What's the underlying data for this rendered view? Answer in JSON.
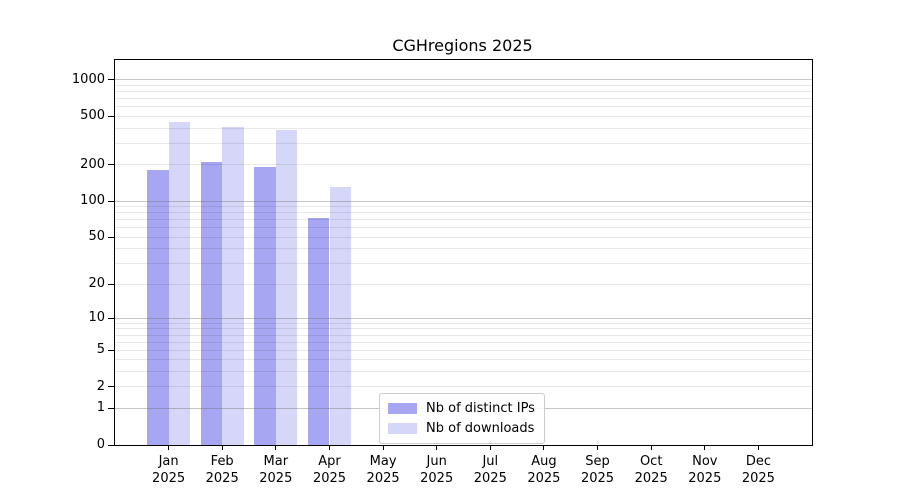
{
  "title": "CGHregions 2025",
  "chart_data": {
    "type": "bar",
    "title": "CGHregions 2025",
    "x_months": [
      "Jan",
      "Feb",
      "Mar",
      "Apr",
      "May",
      "Jun",
      "Jul",
      "Aug",
      "Sep",
      "Oct",
      "Nov",
      "Dec"
    ],
    "year": "2025",
    "x_categories": [
      "Jan 2025",
      "Feb 2025",
      "Mar 2025",
      "Apr 2025",
      "May 2025",
      "Jun 2025",
      "Jul 2025",
      "Aug 2025",
      "Sep 2025",
      "Oct 2025",
      "Nov 2025",
      "Dec 2025"
    ],
    "series": [
      {
        "name": "Nb of distinct IPs",
        "color": "#a6a6f2",
        "values": [
          180,
          210,
          190,
          72,
          null,
          null,
          null,
          null,
          null,
          null,
          null,
          null
        ]
      },
      {
        "name": "Nb of downloads",
        "color": "#d6d6f8",
        "values": [
          450,
          410,
          390,
          130,
          null,
          null,
          null,
          null,
          null,
          null,
          null,
          null
        ]
      }
    ],
    "y_scale": "log1p",
    "y_ticks": [
      0,
      1,
      2,
      5,
      10,
      20,
      50,
      100,
      200,
      500,
      1000
    ],
    "y_lim": [
      0,
      1455
    ],
    "grid": true,
    "grid_above_bars": true,
    "legend_position": "lower-center"
  },
  "legend": {
    "items": [
      {
        "label": "Nb of distinct IPs",
        "color": "#a6a6f2"
      },
      {
        "label": "Nb of downloads",
        "color": "#d6d6f8"
      }
    ]
  },
  "colors": {
    "series_dark": "#a6a6f2",
    "series_light": "#d6d6f8",
    "axis": "#000000",
    "grid_major": "#c4c4c4",
    "grid_minor": "#e9e9e9",
    "background": "#ffffff"
  }
}
